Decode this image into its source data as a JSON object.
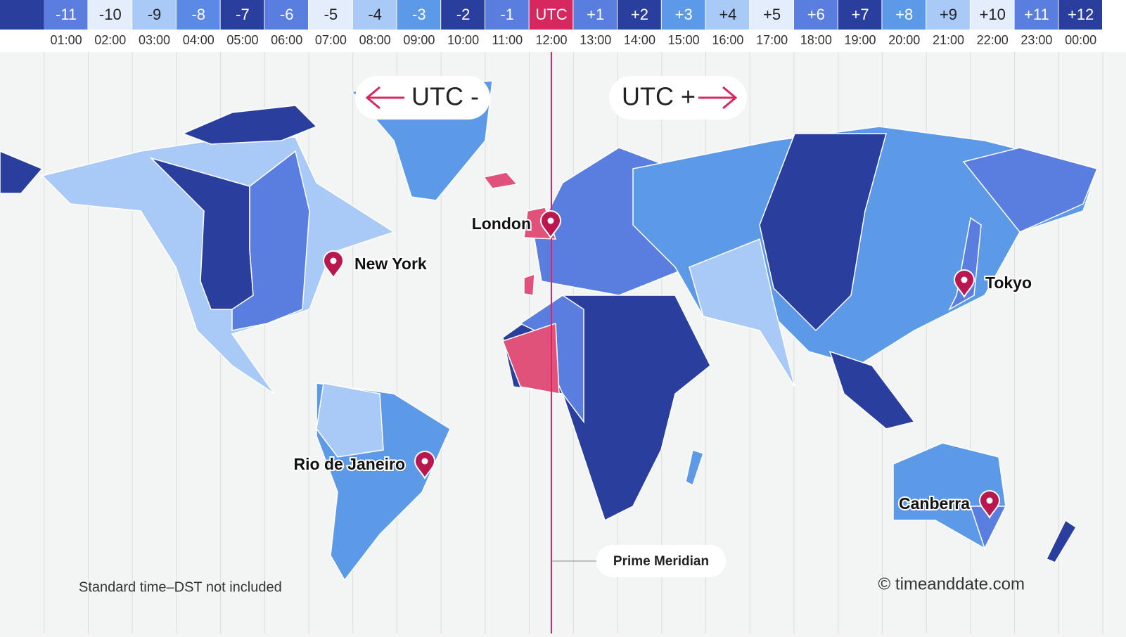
{
  "timezone_bar": {
    "zones": [
      {
        "offset": "-11",
        "time": "01:00"
      },
      {
        "offset": "-10",
        "time": "02:00"
      },
      {
        "offset": "-9",
        "time": "03:00"
      },
      {
        "offset": "-8",
        "time": "04:00"
      },
      {
        "offset": "-7",
        "time": "05:00"
      },
      {
        "offset": "-6",
        "time": "06:00"
      },
      {
        "offset": "-5",
        "time": "07:00"
      },
      {
        "offset": "-4",
        "time": "08:00"
      },
      {
        "offset": "-3",
        "time": "09:00"
      },
      {
        "offset": "-2",
        "time": "10:00"
      },
      {
        "offset": "-1",
        "time": "11:00"
      },
      {
        "offset": "UTC",
        "time": "12:00"
      },
      {
        "offset": "+1",
        "time": "13:00"
      },
      {
        "offset": "+2",
        "time": "14:00"
      },
      {
        "offset": "+3",
        "time": "15:00"
      },
      {
        "offset": "+4",
        "time": "16:00"
      },
      {
        "offset": "+5",
        "time": "17:00"
      },
      {
        "offset": "+6",
        "time": "18:00"
      },
      {
        "offset": "+7",
        "time": "19:00"
      },
      {
        "offset": "+8",
        "time": "20:00"
      },
      {
        "offset": "+9",
        "time": "21:00"
      },
      {
        "offset": "+10",
        "time": "22:00"
      },
      {
        "offset": "+11",
        "time": "23:00"
      },
      {
        "offset": "+12",
        "time": "00:00"
      }
    ]
  },
  "map": {
    "direction_labels": [
      "UTC -",
      "UTC +"
    ],
    "cities": [
      "London",
      "New York",
      "Tokyo",
      "Rio de Janeiro",
      "Canberra"
    ],
    "prime_meridian": "Prime Meridian",
    "note": "Standard time–DST not included",
    "copyright": "© timeanddate.com"
  }
}
